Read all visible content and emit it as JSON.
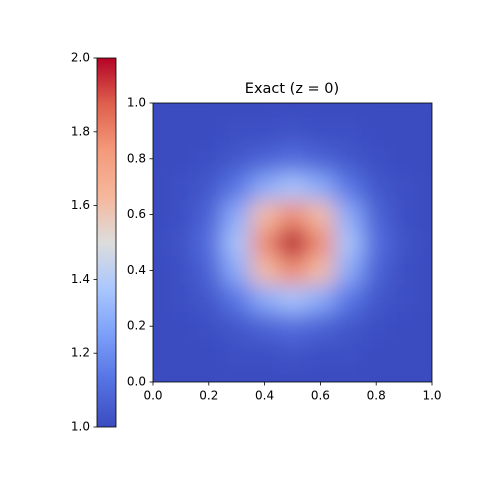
{
  "chart_data": {
    "type": "heatmap",
    "title": "Exact (z = 0)",
    "colormap": "coolwarm",
    "x": [
      0,
      0.1,
      0.2,
      0.3,
      0.4,
      0.5,
      0.6,
      0.7,
      0.8,
      0.9,
      1
    ],
    "y": [
      0,
      0.1,
      0.2,
      0.3,
      0.4,
      0.5,
      0.6,
      0.7,
      0.8,
      0.9,
      1
    ],
    "z": [
      [
        1.0,
        1.0,
        1.0,
        1.0,
        1.0,
        1.0,
        1.0,
        1.0,
        1.0,
        1.0,
        1.0
      ],
      [
        1.0,
        1.0,
        1.0,
        1.01,
        1.01,
        1.02,
        1.01,
        1.01,
        1.0,
        1.0,
        1.0
      ],
      [
        1.0,
        1.0,
        1.01,
        1.04,
        1.08,
        1.11,
        1.08,
        1.04,
        1.01,
        1.0,
        1.0
      ],
      [
        1.0,
        1.01,
        1.04,
        1.14,
        1.29,
        1.37,
        1.29,
        1.14,
        1.04,
        1.01,
        1.0
      ],
      [
        1.0,
        1.01,
        1.08,
        1.29,
        1.61,
        1.78,
        1.61,
        1.29,
        1.08,
        1.01,
        1.0
      ],
      [
        1.0,
        1.02,
        1.11,
        1.37,
        1.78,
        2.0,
        1.78,
        1.37,
        1.11,
        1.02,
        1.0
      ],
      [
        1.0,
        1.01,
        1.08,
        1.29,
        1.61,
        1.78,
        1.61,
        1.29,
        1.08,
        1.01,
        1.0
      ],
      [
        1.0,
        1.01,
        1.04,
        1.14,
        1.29,
        1.37,
        1.29,
        1.14,
        1.04,
        1.01,
        1.0
      ],
      [
        1.0,
        1.0,
        1.01,
        1.04,
        1.08,
        1.11,
        1.08,
        1.04,
        1.01,
        1.0,
        1.0
      ],
      [
        1.0,
        1.0,
        1.0,
        1.01,
        1.01,
        1.02,
        1.01,
        1.01,
        1.0,
        1.0,
        1.0
      ],
      [
        1.0,
        1.0,
        1.0,
        1.0,
        1.0,
        1.0,
        1.0,
        1.0,
        1.0,
        1.0,
        1.0
      ]
    ],
    "xlim": [
      0,
      1
    ],
    "ylim": [
      0,
      1
    ],
    "xticks": [
      {
        "value": 0,
        "label": "0.0"
      },
      0.2,
      0.4,
      0.6,
      0.8,
      {
        "value": 1,
        "label": "1.0"
      }
    ],
    "yticks": [
      {
        "value": 0,
        "label": "0.0"
      },
      0.2,
      0.4,
      0.6,
      0.8,
      {
        "value": 1,
        "label": "1.0"
      }
    ],
    "clim": [
      1,
      2
    ],
    "cticks": [
      {
        "value": 1,
        "label": "1.0"
      },
      1.2,
      1.4,
      1.6,
      1.8,
      {
        "value": 2,
        "label": "2.0"
      }
    ]
  }
}
